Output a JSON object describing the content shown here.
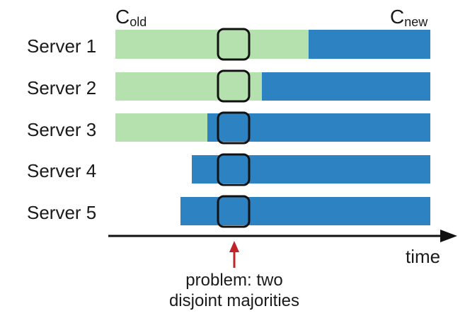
{
  "header": {
    "old_config": {
      "letter": "C",
      "sub": "old"
    },
    "new_config": {
      "letter": "C",
      "sub": "new"
    }
  },
  "servers": [
    {
      "label": "Server 1",
      "state_before_window": "old",
      "state_in_window": "old"
    },
    {
      "label": "Server 2",
      "state_before_window": "old",
      "state_in_window": "old"
    },
    {
      "label": "Server 3",
      "state_before_window": "old",
      "state_in_window": "new"
    },
    {
      "label": "Server 4",
      "state_before_window": "none",
      "state_in_window": "new"
    },
    {
      "label": "Server 5",
      "state_before_window": "none",
      "state_in_window": "new"
    }
  ],
  "axis": {
    "label": "time"
  },
  "annotation": {
    "line1": "problem: two",
    "line2": "disjoint majorities"
  },
  "colors": {
    "old_config": "#b4e1ad",
    "new_config": "#2d83c1",
    "window_outline": "#111111",
    "arrow": "#c0232a",
    "axis": "#111111"
  }
}
